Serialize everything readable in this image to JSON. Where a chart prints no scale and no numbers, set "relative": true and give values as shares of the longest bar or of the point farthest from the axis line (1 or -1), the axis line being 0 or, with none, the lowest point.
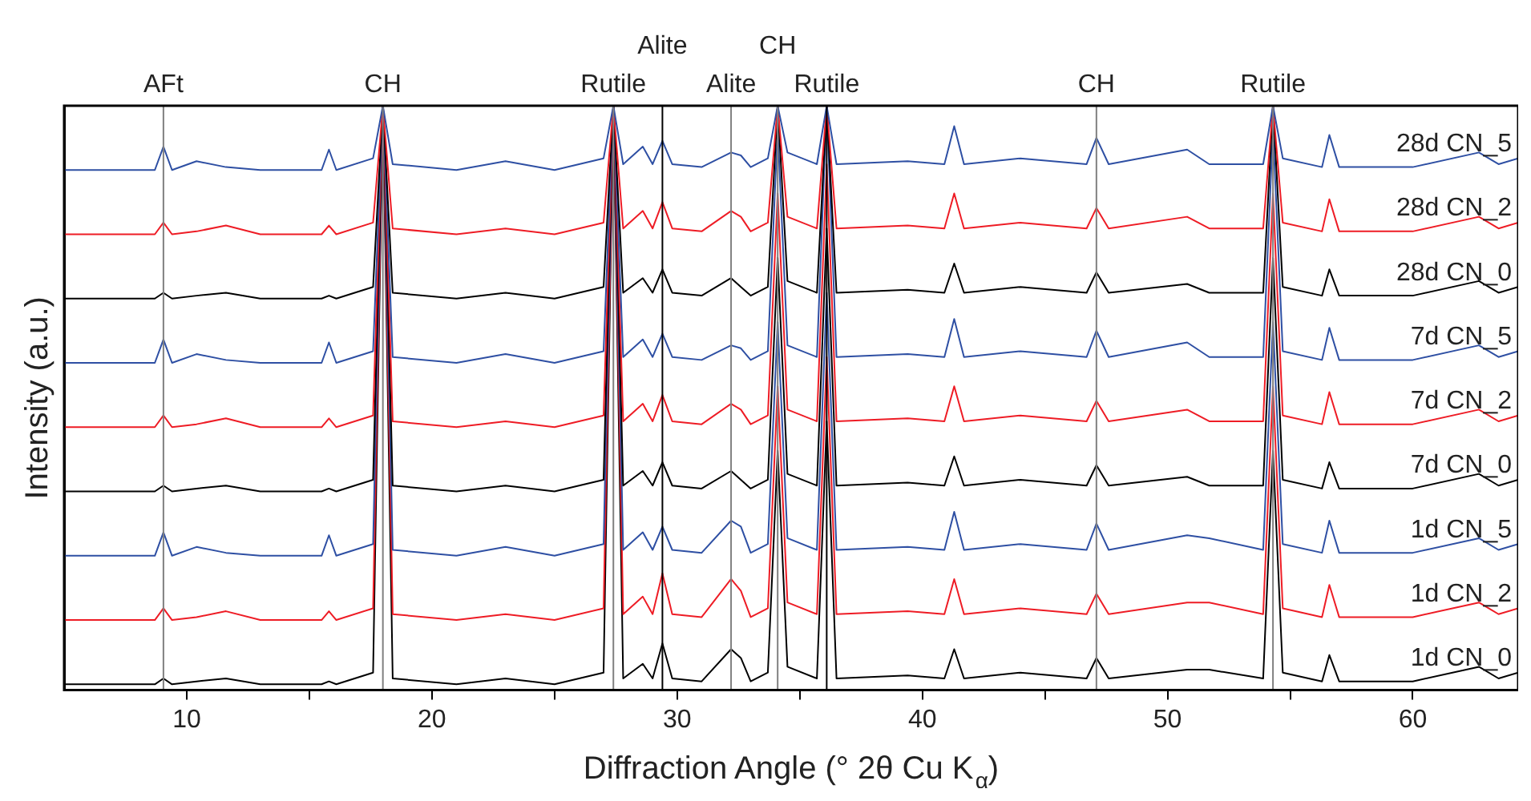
{
  "chart_data": {
    "type": "line",
    "xlabel": "Diffraction Angle (° 2θ Cu K$_{α}$)",
    "ylabel": "Intensity (a.u.)",
    "relative": true,
    "legend": false,
    "grid": false,
    "marker": "none",
    "line_style": "solid",
    "xlim": [
      5,
      64.3
    ],
    "xticks": [
      10,
      {
        "value": 15,
        "label": null
      },
      20,
      {
        "value": 25,
        "label": null
      },
      30,
      {
        "value": 35,
        "label": null
      },
      40,
      {
        "value": 45,
        "label": null
      },
      50,
      {
        "value": 55,
        "label": null
      },
      60
    ],
    "x": [
      5,
      8.7,
      9.05,
      9.4,
      10.4,
      11.6,
      13,
      15.5,
      15.8,
      16.1,
      17.6,
      18.0,
      18.4,
      21,
      23.0,
      25,
      27.0,
      27.4,
      27.8,
      28.6,
      29.0,
      29.4,
      29.8,
      31,
      32.2,
      32.6,
      33,
      33.7,
      34.1,
      34.5,
      35.7,
      36.1,
      36.5,
      39.4,
      40.9,
      41.3,
      41.7,
      44.0,
      46.7,
      47.1,
      47.6,
      50.8,
      51.7,
      53.9,
      54.3,
      54.7,
      56.3,
      56.6,
      57,
      60.0,
      62.7,
      63.5,
      64.3
    ],
    "series": [
      {
        "name": "28d CN_5",
        "color": "#2e4fa3",
        "values": [
          0.89,
          0.89,
          0.93,
          0.89,
          0.905,
          0.895,
          0.89,
          0.89,
          0.925,
          0.89,
          0.91,
          1,
          0.9,
          0.89,
          0.905,
          0.89,
          0.91,
          1,
          0.9,
          0.93,
          0.9,
          0.94,
          0.9,
          0.895,
          0.92,
          0.915,
          0.895,
          0.91,
          1,
          0.92,
          0.9,
          1,
          0.9,
          0.905,
          0.9,
          0.965,
          0.9,
          0.91,
          0.9,
          0.945,
          0.9,
          0.925,
          0.9,
          0.9,
          1,
          0.91,
          0.895,
          0.95,
          0.895,
          0.895,
          0.92,
          0.9,
          0.91
        ]
      },
      {
        "name": "28d CN_2",
        "color": "#ee1c25",
        "values": [
          0.78,
          0.78,
          0.8,
          0.78,
          0.785,
          0.795,
          0.78,
          0.78,
          0.795,
          0.78,
          0.8,
          1,
          0.79,
          0.78,
          0.79,
          0.78,
          0.8,
          1,
          0.79,
          0.82,
          0.79,
          0.835,
          0.79,
          0.785,
          0.82,
          0.81,
          0.785,
          0.8,
          1,
          0.81,
          0.79,
          1,
          0.79,
          0.795,
          0.79,
          0.85,
          0.79,
          0.8,
          0.79,
          0.825,
          0.79,
          0.81,
          0.79,
          0.79,
          1,
          0.8,
          0.785,
          0.84,
          0.785,
          0.785,
          0.81,
          0.79,
          0.8
        ]
      },
      {
        "name": "28d CN_0",
        "color": "#000000",
        "values": [
          0.67,
          0.67,
          0.68,
          0.67,
          0.675,
          0.68,
          0.67,
          0.67,
          0.675,
          0.67,
          0.69,
          1,
          0.68,
          0.67,
          0.68,
          0.67,
          0.69,
          1,
          0.68,
          0.705,
          0.68,
          0.72,
          0.68,
          0.675,
          0.705,
          0.69,
          0.675,
          0.69,
          1,
          0.7,
          0.68,
          1,
          0.68,
          0.685,
          0.68,
          0.73,
          0.68,
          0.69,
          0.68,
          0.715,
          0.68,
          0.695,
          0.68,
          0.68,
          1,
          0.69,
          0.675,
          0.72,
          0.675,
          0.675,
          0.7,
          0.68,
          0.69
        ]
      },
      {
        "name": "7d CN_5",
        "color": "#2e4fa3",
        "values": [
          0.56,
          0.56,
          0.6,
          0.56,
          0.575,
          0.565,
          0.56,
          0.56,
          0.595,
          0.56,
          0.58,
          1,
          0.57,
          0.56,
          0.575,
          0.56,
          0.58,
          1,
          0.57,
          0.6,
          0.57,
          0.61,
          0.57,
          0.565,
          0.59,
          0.585,
          0.565,
          0.58,
          0.96,
          0.59,
          0.57,
          1,
          0.57,
          0.575,
          0.57,
          0.635,
          0.57,
          0.58,
          0.57,
          0.615,
          0.57,
          0.595,
          0.57,
          0.57,
          0.96,
          0.58,
          0.565,
          0.62,
          0.565,
          0.565,
          0.59,
          0.57,
          0.58
        ]
      },
      {
        "name": "7d CN_2",
        "color": "#ee1c25",
        "values": [
          0.45,
          0.45,
          0.47,
          0.45,
          0.455,
          0.465,
          0.45,
          0.45,
          0.465,
          0.45,
          0.47,
          1,
          0.46,
          0.45,
          0.46,
          0.45,
          0.47,
          1,
          0.46,
          0.49,
          0.46,
          0.505,
          0.46,
          0.455,
          0.49,
          0.48,
          0.455,
          0.47,
          0.85,
          0.48,
          0.46,
          0.9,
          0.46,
          0.465,
          0.46,
          0.52,
          0.46,
          0.47,
          0.46,
          0.495,
          0.46,
          0.48,
          0.46,
          0.46,
          0.85,
          0.47,
          0.455,
          0.51,
          0.455,
          0.455,
          0.48,
          0.46,
          0.47
        ]
      },
      {
        "name": "7d CN_0",
        "color": "#000000",
        "values": [
          0.34,
          0.34,
          0.35,
          0.34,
          0.345,
          0.35,
          0.34,
          0.34,
          0.345,
          0.34,
          0.36,
          1,
          0.35,
          0.34,
          0.35,
          0.34,
          0.36,
          1,
          0.35,
          0.375,
          0.35,
          0.39,
          0.35,
          0.345,
          0.375,
          0.36,
          0.345,
          0.36,
          0.74,
          0.37,
          0.35,
          0.79,
          0.35,
          0.355,
          0.35,
          0.4,
          0.35,
          0.36,
          0.35,
          0.385,
          0.35,
          0.365,
          0.35,
          0.35,
          0.74,
          0.36,
          0.345,
          0.39,
          0.345,
          0.345,
          0.37,
          0.35,
          0.36
        ]
      },
      {
        "name": "1d CN_5",
        "color": "#2e4fa3",
        "values": [
          0.23,
          0.23,
          0.27,
          0.23,
          0.245,
          0.235,
          0.23,
          0.23,
          0.265,
          0.23,
          0.25,
          1,
          0.24,
          0.23,
          0.245,
          0.23,
          0.25,
          1,
          0.24,
          0.27,
          0.24,
          0.28,
          0.24,
          0.235,
          0.29,
          0.28,
          0.235,
          0.25,
          0.63,
          0.26,
          0.24,
          0.68,
          0.24,
          0.245,
          0.24,
          0.305,
          0.24,
          0.25,
          0.24,
          0.285,
          0.24,
          0.265,
          0.26,
          0.24,
          0.63,
          0.25,
          0.235,
          0.29,
          0.235,
          0.235,
          0.26,
          0.24,
          0.25
        ]
      },
      {
        "name": "1d CN_2",
        "color": "#ee1c25",
        "values": [
          0.12,
          0.12,
          0.14,
          0.12,
          0.125,
          0.135,
          0.12,
          0.12,
          0.135,
          0.12,
          0.14,
          1,
          0.13,
          0.12,
          0.13,
          0.12,
          0.14,
          1,
          0.13,
          0.16,
          0.13,
          0.2,
          0.13,
          0.125,
          0.19,
          0.17,
          0.125,
          0.14,
          0.52,
          0.15,
          0.13,
          0.57,
          0.13,
          0.135,
          0.13,
          0.19,
          0.13,
          0.14,
          0.13,
          0.165,
          0.13,
          0.15,
          0.15,
          0.13,
          0.52,
          0.14,
          0.125,
          0.18,
          0.125,
          0.125,
          0.15,
          0.13,
          0.14
        ]
      },
      {
        "name": "1d CN_0",
        "color": "#000000",
        "values": [
          0.01,
          0.01,
          0.02,
          0.01,
          0.015,
          0.02,
          0.01,
          0.01,
          0.015,
          0.01,
          0.03,
          1,
          0.02,
          0.01,
          0.02,
          0.01,
          0.03,
          1,
          0.02,
          0.045,
          0.02,
          0.08,
          0.02,
          0.015,
          0.07,
          0.055,
          0.015,
          0.03,
          0.41,
          0.04,
          0.02,
          0.46,
          0.02,
          0.025,
          0.02,
          0.07,
          0.02,
          0.03,
          0.02,
          0.055,
          0.02,
          0.035,
          0.035,
          0.02,
          0.41,
          0.03,
          0.015,
          0.06,
          0.015,
          0.015,
          0.04,
          0.02,
          0.03
        ]
      }
    ],
    "ref_lines": [
      {
        "axis": "x",
        "value": 9.05,
        "label": "AFt",
        "color": "#808080"
      },
      {
        "axis": "x",
        "value": 18.0,
        "label": "CH",
        "color": "#808080"
      },
      {
        "axis": "x",
        "value": 27.4,
        "label": "Rutile",
        "color": "#808080"
      },
      {
        "axis": "x",
        "value": 29.4,
        "label": "Alite",
        "color": "#000000"
      },
      {
        "axis": "x",
        "value": 32.2,
        "label": "Alite",
        "color": "#808080"
      },
      {
        "axis": "x",
        "value": 34.1,
        "label": "CH",
        "color": "#808080"
      },
      {
        "axis": "x",
        "value": 36.1,
        "label": "Rutile",
        "color": "#000000"
      },
      {
        "axis": "x",
        "value": 47.1,
        "label": "CH",
        "color": "#808080"
      },
      {
        "axis": "x",
        "value": 54.3,
        "label": "Rutile",
        "color": "#808080"
      }
    ]
  }
}
